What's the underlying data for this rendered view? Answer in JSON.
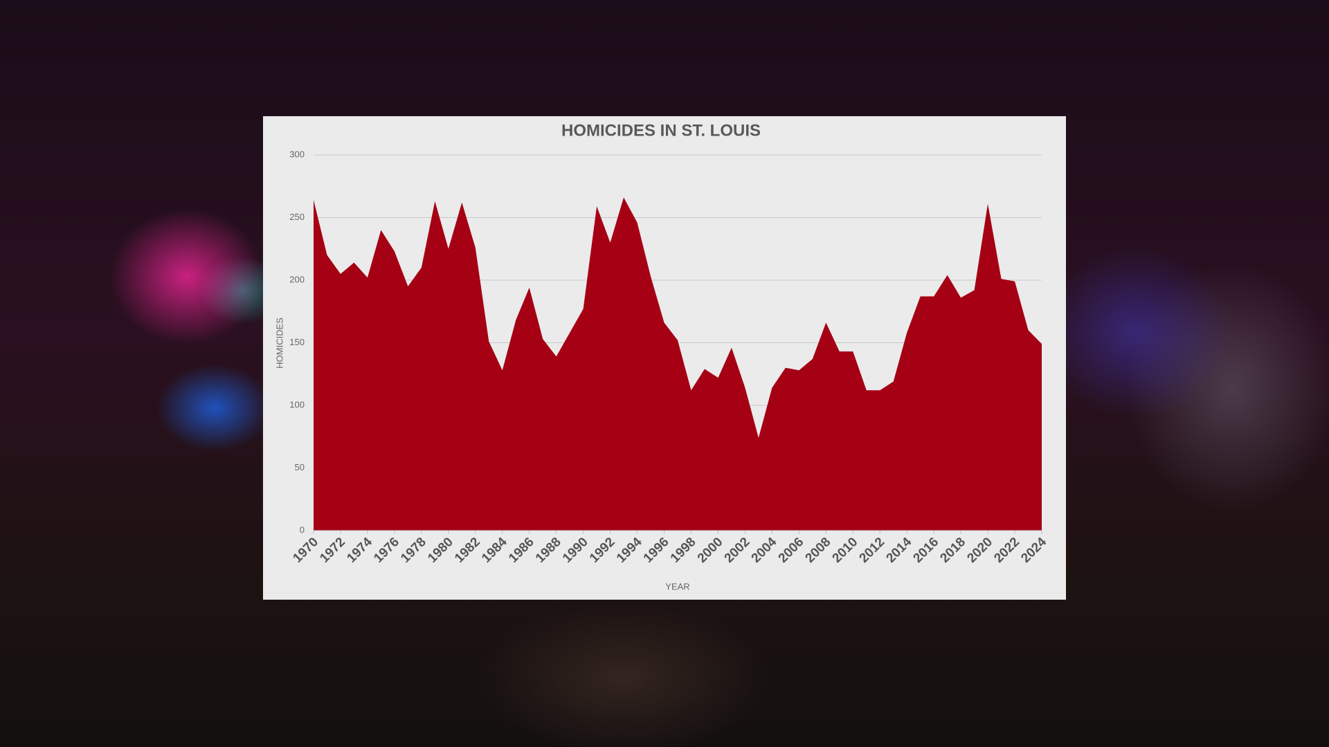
{
  "chart_data": {
    "type": "area",
    "title": "HOMICIDES IN ST. LOUIS",
    "x_label": "YEAR",
    "y_label": "HOMICIDES",
    "x": [
      1970,
      1971,
      1972,
      1973,
      1974,
      1975,
      1976,
      1977,
      1978,
      1979,
      1980,
      1981,
      1982,
      1983,
      1984,
      1985,
      1986,
      1987,
      1988,
      1989,
      1990,
      1991,
      1992,
      1993,
      1994,
      1995,
      1996,
      1997,
      1998,
      1999,
      2000,
      2001,
      2002,
      2003,
      2004,
      2005,
      2006,
      2007,
      2008,
      2009,
      2010,
      2011,
      2012,
      2013,
      2014,
      2015,
      2016,
      2017,
      2018,
      2019,
      2020,
      2021,
      2022,
      2023,
      2024
    ],
    "values": [
      264,
      220,
      205,
      214,
      202,
      240,
      223,
      195,
      210,
      263,
      225,
      262,
      226,
      151,
      128,
      168,
      194,
      153,
      139,
      158,
      177,
      259,
      230,
      266,
      246,
      203,
      166,
      152,
      112,
      129,
      122,
      146,
      114,
      74,
      114,
      130,
      128,
      137,
      166,
      143,
      143,
      112,
      112,
      119,
      158,
      187,
      187,
      204,
      186,
      192,
      261,
      201,
      199,
      160,
      149
    ],
    "color": "#a50014",
    "xlim": [
      1970,
      2024
    ],
    "xticks": [
      1970,
      1972,
      1974,
      1976,
      1978,
      1980,
      1982,
      1984,
      1986,
      1988,
      1990,
      1992,
      1994,
      1996,
      1998,
      2000,
      2002,
      2004,
      2006,
      2008,
      2010,
      2012,
      2014,
      2016,
      2018,
      2020,
      2022,
      2024
    ],
    "ylim": [
      0,
      300
    ],
    "yticks": [
      0,
      50,
      100,
      150,
      200,
      250,
      300
    ],
    "grid": true
  }
}
